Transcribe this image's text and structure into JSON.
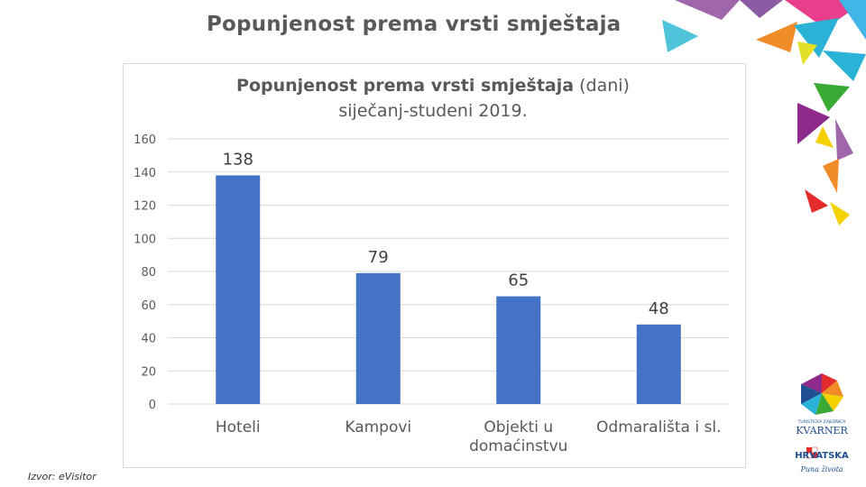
{
  "slide": {
    "title": "Popunjenost prema vrsti smještaja",
    "source": "Izvor: eVisitor"
  },
  "chart_data": {
    "type": "bar",
    "title_bold": "Popunjenost prema vrsti smještaja",
    "title_rest": "(dani)",
    "subtitle": "siječanj-studeni 2019.",
    "categories": [
      "Hoteli",
      "Kampovi",
      "Objekti u domaćinstvu",
      "Odmarališta i sl."
    ],
    "category_lines": [
      [
        "Hoteli"
      ],
      [
        "Kampovi"
      ],
      [
        "Objekti u",
        "domaćinstvu"
      ],
      [
        "Odmarališta i sl."
      ]
    ],
    "values": [
      138,
      79,
      65,
      48
    ],
    "data_labels": [
      "138",
      "79",
      "65",
      "48"
    ],
    "ylim": [
      0,
      160
    ],
    "yticks": [
      "0",
      "20",
      "40",
      "60",
      "80",
      "100",
      "120",
      "140",
      "160"
    ],
    "grid": true,
    "bar_color": "#4472c4",
    "xlabel": "",
    "ylabel": ""
  },
  "logos": {
    "kvarner_small": "TURISTIČKA ZAJEDNICA",
    "kvarner": "KVARNER",
    "hrvatska": "HRVATSKA",
    "hrvatska_tagline": "Puna života"
  }
}
